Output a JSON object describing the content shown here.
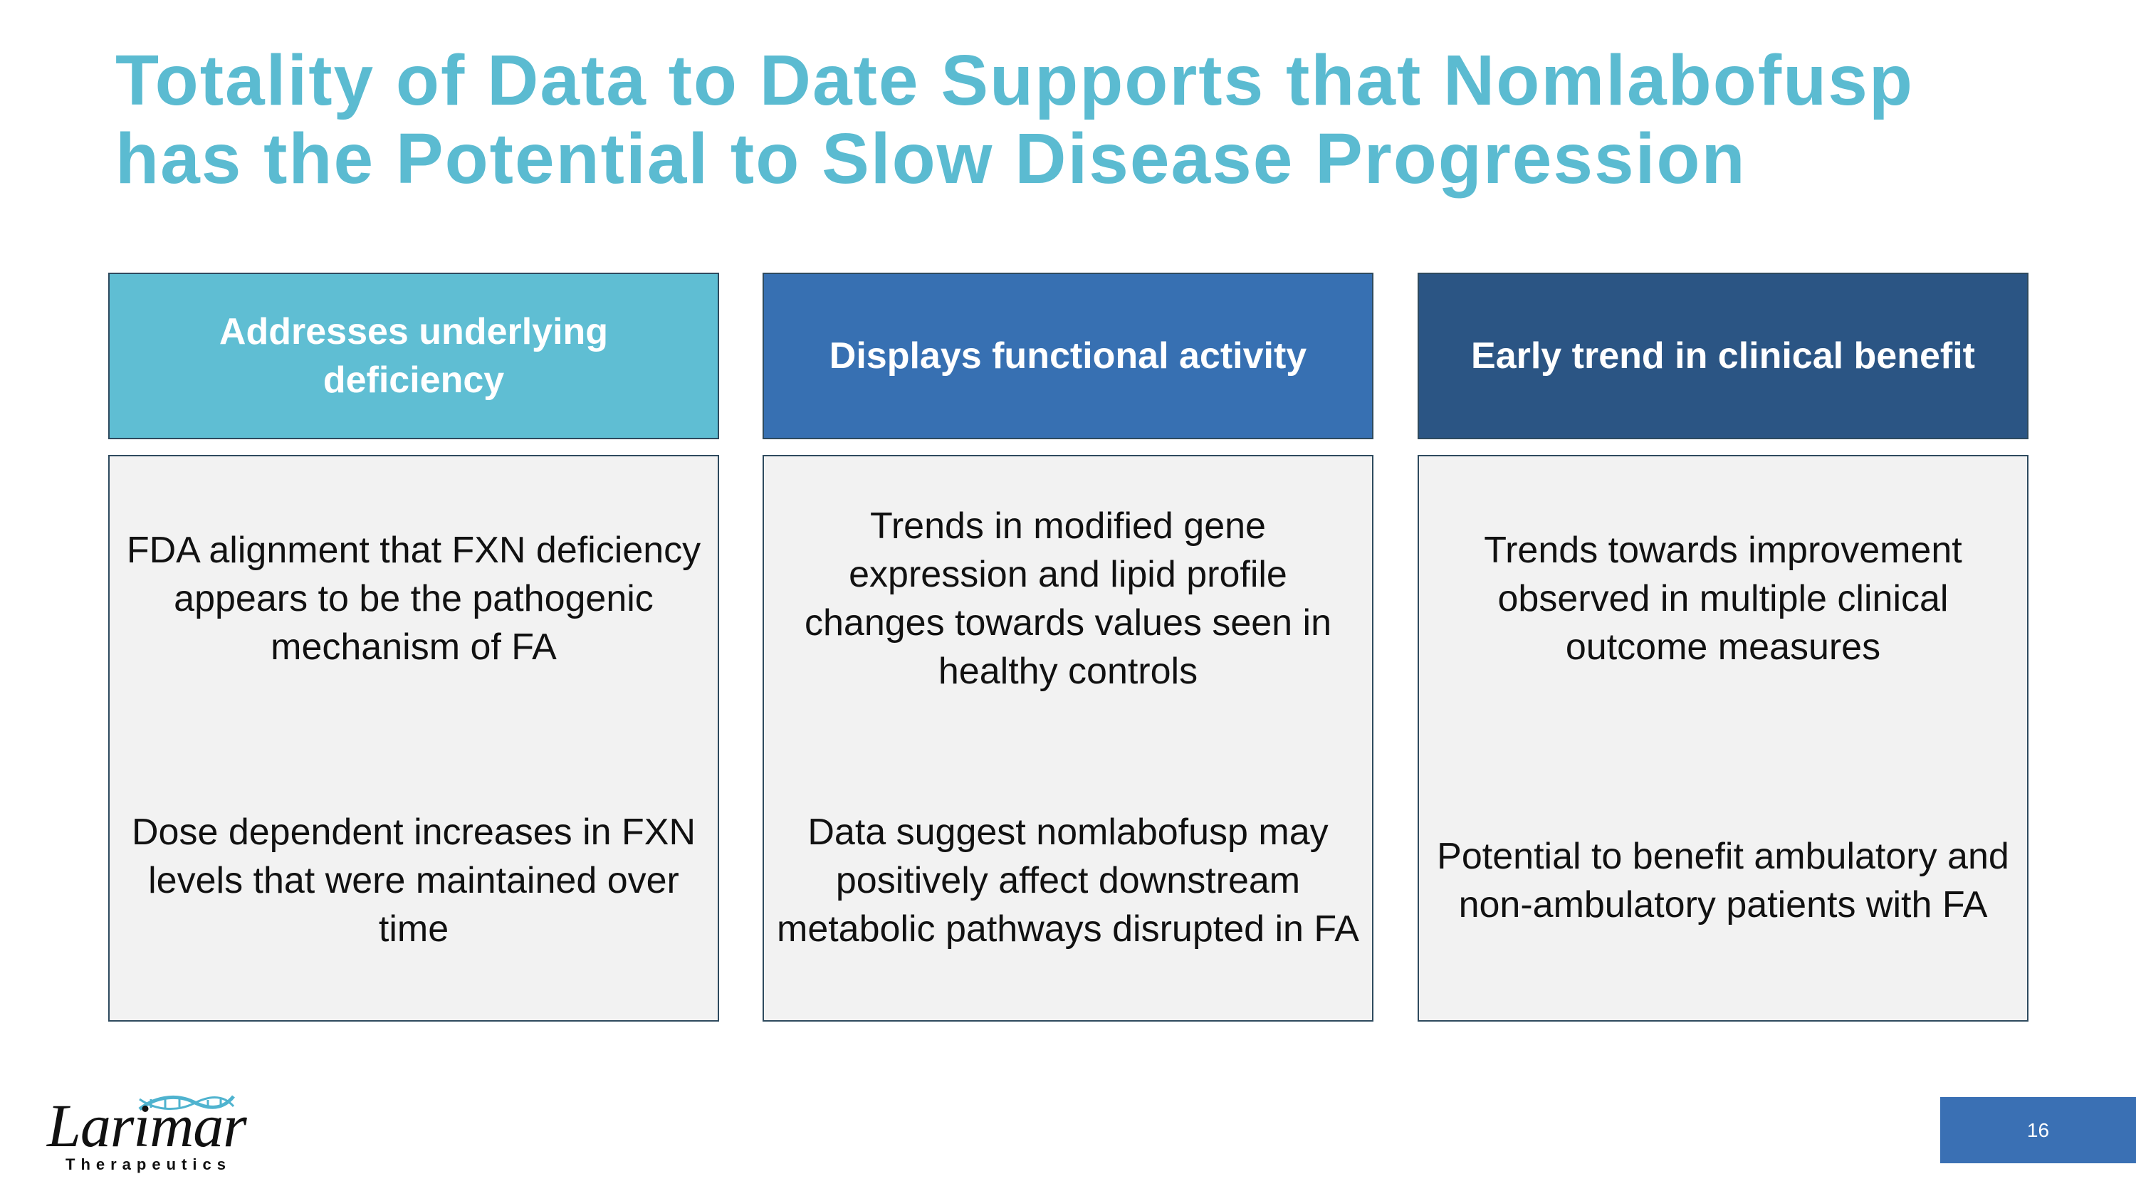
{
  "slide": {
    "title_line1": "Totality of Data to Date Supports that Nomlabofusp",
    "title_line2": "has the Potential to Slow Disease Progression",
    "page_number": "16"
  },
  "columns": [
    {
      "header": "Addresses underlying deficiency",
      "header_color": "#5FBED3",
      "top_text": "FDA alignment that FXN deficiency appears to be the pathogenic mechanism of FA",
      "bottom_text": "Dose dependent increases in FXN levels that were maintained over time"
    },
    {
      "header": "Displays functional activity",
      "header_color": "#3770B2",
      "top_text": "Trends in modified gene expression and lipid profile changes towards values seen in healthy controls",
      "bottom_text": "Data suggest nomlabofusp may positively affect downstream metabolic pathways disrupted in FA"
    },
    {
      "header": "Early trend in clinical benefit",
      "header_color": "#2B5584",
      "top_text": "Trends towards improvement observed in multiple clinical outcome measures",
      "bottom_text": "Potential to benefit ambulatory and non-ambulatory patients with FA"
    }
  ],
  "logo": {
    "name": "Larimar",
    "subtitle": "Therapeutics",
    "accent_color": "#4FB3CF"
  },
  "colors": {
    "title": "#5BBBD1",
    "page_number_box": "#3A70B4",
    "body_background": "#F2F2F2",
    "border": "#2E4A5E"
  }
}
